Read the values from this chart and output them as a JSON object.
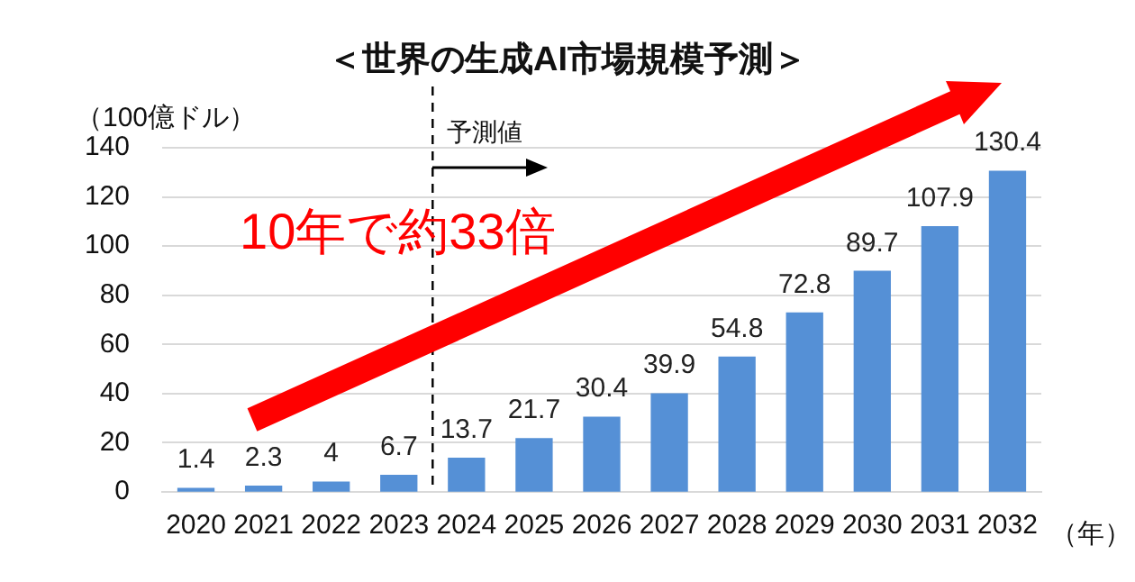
{
  "chart_data": {
    "type": "bar",
    "title": "＜世界の生成AI市場規模予測＞",
    "ylabel": "（100億ドル）",
    "xlabel": "（年）",
    "categories": [
      "2020",
      "2021",
      "2022",
      "2023",
      "2024",
      "2025",
      "2026",
      "2027",
      "2028",
      "2029",
      "2030",
      "2031",
      "2032"
    ],
    "values": [
      1.4,
      2.3,
      4,
      6.7,
      13.7,
      21.7,
      30.4,
      39.9,
      54.8,
      72.8,
      89.7,
      107.9,
      130.4
    ],
    "color": "#5590d6",
    "ylim": [
      0,
      140
    ],
    "yticks": [
      0,
      20,
      40,
      60,
      80,
      100,
      120,
      140
    ],
    "grid": "y",
    "data_labels": true,
    "ref_lines": [
      {
        "axis": "x",
        "value": "2024",
        "label": "予測値",
        "color": "#000000",
        "line_style": "dashed"
      }
    ],
    "annotations": [
      "10年で約33倍"
    ]
  }
}
